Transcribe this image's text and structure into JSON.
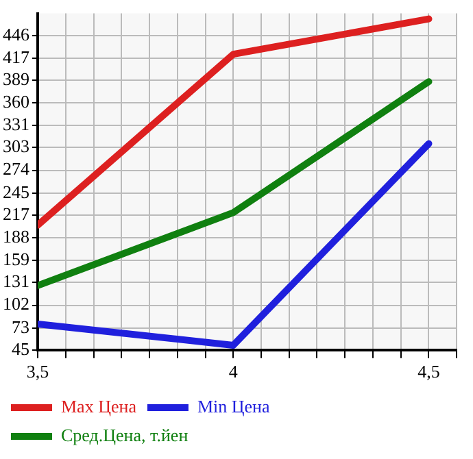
{
  "chart_data": {
    "type": "line",
    "x": [
      3.5,
      4,
      4.5
    ],
    "series": [
      {
        "name": "Max Цена",
        "color": "#dd2020",
        "values": [
          204,
          422,
          467
        ]
      },
      {
        "name": "Min Цена",
        "color": "#2020dd",
        "values": [
          78,
          51,
          308
        ]
      },
      {
        "name": "Сред.Цена, т.йен",
        "color": "#108010",
        "values": [
          127,
          220,
          387
        ]
      }
    ],
    "xlim": [
      3.5,
      4.571
    ],
    "xticks": [
      {
        "value": 3.5,
        "label": "3,5"
      },
      {
        "value": 3.571,
        "label": null
      },
      {
        "value": 3.643,
        "label": null
      },
      {
        "value": 3.714,
        "label": null
      },
      {
        "value": 3.786,
        "label": null
      },
      {
        "value": 3.857,
        "label": null
      },
      {
        "value": 3.929,
        "label": null
      },
      {
        "value": 4,
        "label": "4"
      },
      {
        "value": 4.071,
        "label": null
      },
      {
        "value": 4.143,
        "label": null
      },
      {
        "value": 4.214,
        "label": null
      },
      {
        "value": 4.286,
        "label": null
      },
      {
        "value": 4.357,
        "label": null
      },
      {
        "value": 4.429,
        "label": null
      },
      {
        "value": 4.5,
        "label": "4,5"
      },
      {
        "value": 4.571,
        "label": null
      }
    ],
    "ylim": [
      45,
      474
    ],
    "yticks": [
      45,
      73,
      102,
      131,
      159,
      188,
      217,
      245,
      274,
      303,
      331,
      360,
      389,
      417,
      446
    ],
    "grid": true,
    "legend": "bottom",
    "marker": "none",
    "line_style": "solid"
  }
}
